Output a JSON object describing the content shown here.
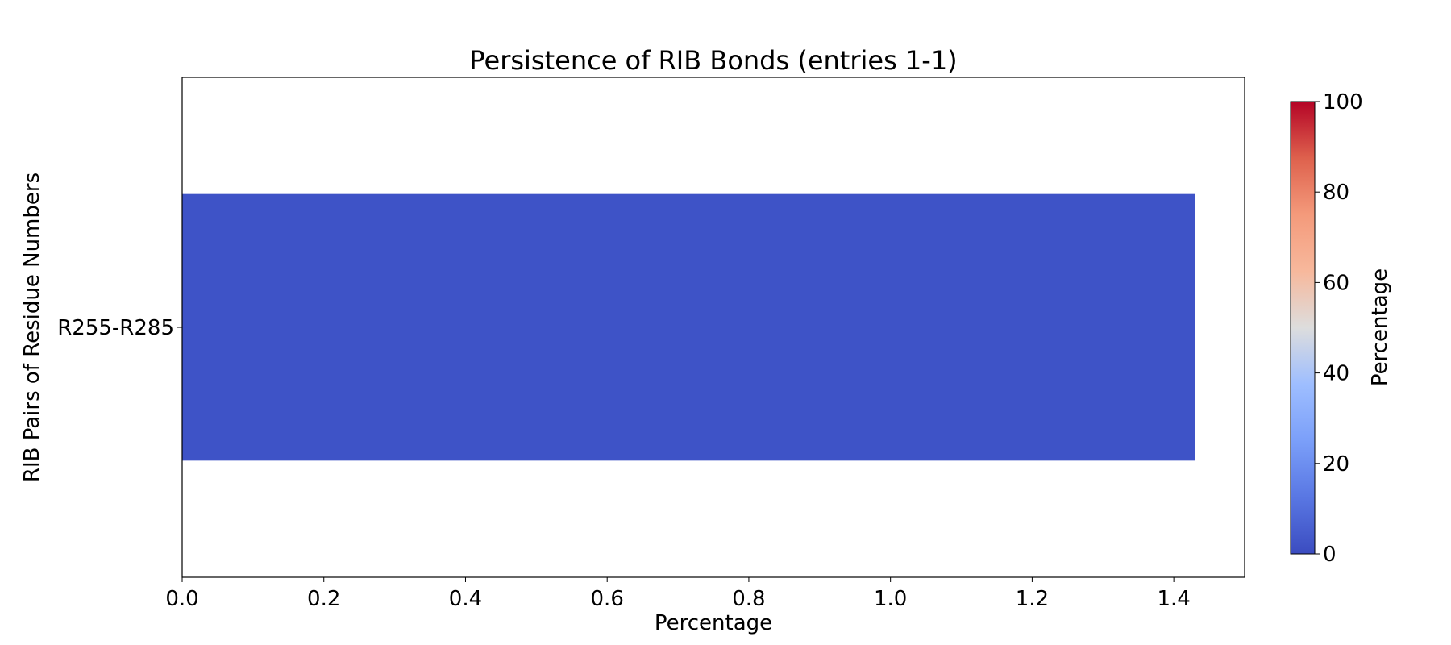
{
  "chart_data": {
    "type": "bar",
    "orientation": "horizontal",
    "title": "Persistence of RIB Bonds (entries 1-1)",
    "xlabel": "Percentage",
    "ylabel": "RIB Pairs of Residue Numbers",
    "categories": [
      "R255-R285"
    ],
    "values": [
      1.43
    ],
    "xlim": [
      0,
      1.5
    ],
    "xticks": [
      "0.0",
      "0.2",
      "0.4",
      "0.6",
      "0.8",
      "1.0",
      "1.2",
      "1.4"
    ],
    "grid": false,
    "colorbar": {
      "label": "Percentage",
      "range": [
        0,
        100
      ],
      "ticks": [
        "0",
        "20",
        "40",
        "60",
        "80",
        "100"
      ],
      "colormap": "coolwarm"
    },
    "colors": {
      "bar": "#3e53c7",
      "cmap_low": "#3b4cc0",
      "cmap_mid": "#dddddd",
      "cmap_high": "#b40426"
    }
  }
}
